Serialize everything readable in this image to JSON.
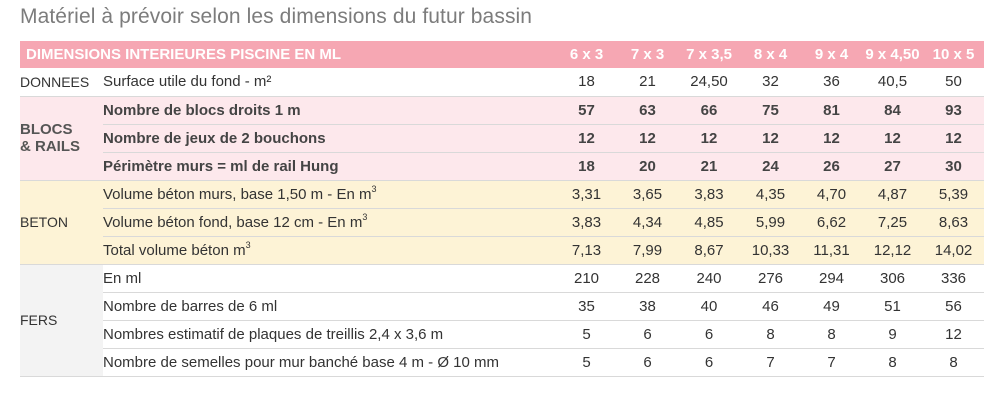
{
  "page": {
    "title": "Matériel à prévoir selon les dimensions du futur bassin"
  },
  "table": {
    "header_label": "DIMENSIONS INTERIEURES PISCINE EN ML",
    "columns": [
      "6 x 3",
      "7 x 3",
      "7 x 3,5",
      "8 x 4",
      "9 x 4",
      "9 x 4,50",
      "10 x 5"
    ],
    "sections": [
      {
        "group": "DONNEES",
        "rows": [
          {
            "label": "Surface utile du fond - m²",
            "values": [
              "18",
              "21",
              "24,50",
              "32",
              "36",
              "40,5",
              "50"
            ]
          }
        ]
      },
      {
        "group": "BLOCS\n& RAILS",
        "rows": [
          {
            "label": "Nombre de blocs droits 1 m",
            "values": [
              "57",
              "63",
              "66",
              "75",
              "81",
              "84",
              "93"
            ]
          },
          {
            "label": "Nombre de jeux de 2 bouchons",
            "values": [
              "12",
              "12",
              "12",
              "12",
              "12",
              "12",
              "12"
            ]
          },
          {
            "label": "Périmètre murs = ml de rail Hung",
            "values": [
              "18",
              "20",
              "21",
              "24",
              "26",
              "27",
              "30"
            ]
          }
        ]
      },
      {
        "group": "BETON",
        "rows": [
          {
            "label": "Volume béton murs, base 1,50 m - En m",
            "sup": "3",
            "values": [
              "3,31",
              "3,65",
              "3,83",
              "4,35",
              "4,70",
              "4,87",
              "5,39"
            ]
          },
          {
            "label": "Volume béton fond, base 12 cm - En m",
            "sup": "3",
            "values": [
              "3,83",
              "4,34",
              "4,85",
              "5,99",
              "6,62",
              "7,25",
              "8,63"
            ]
          },
          {
            "label": "Total volume béton m",
            "sup": "3",
            "values": [
              "7,13",
              "7,99",
              "8,67",
              "10,33",
              "11,31",
              "12,12",
              "14,02"
            ]
          }
        ]
      },
      {
        "group": "FERS",
        "rows": [
          {
            "label": "En ml",
            "values": [
              "210",
              "228",
              "240",
              "276",
              "294",
              "306",
              "336"
            ]
          },
          {
            "label": "Nombre de barres de 6 ml",
            "values": [
              "35",
              "38",
              "40",
              "46",
              "49",
              "51",
              "56"
            ]
          },
          {
            "label": "Nombres estimatif de plaques de treillis 2,4 x 3,6 m",
            "values": [
              "5",
              "6",
              "6",
              "8",
              "8",
              "9",
              "12"
            ]
          },
          {
            "label": "Nombre de semelles pour mur banché base 4 m  - Ø 10 mm",
            "values": [
              "5",
              "6",
              "6",
              "7",
              "7",
              "8",
              "8"
            ]
          }
        ]
      }
    ]
  }
}
